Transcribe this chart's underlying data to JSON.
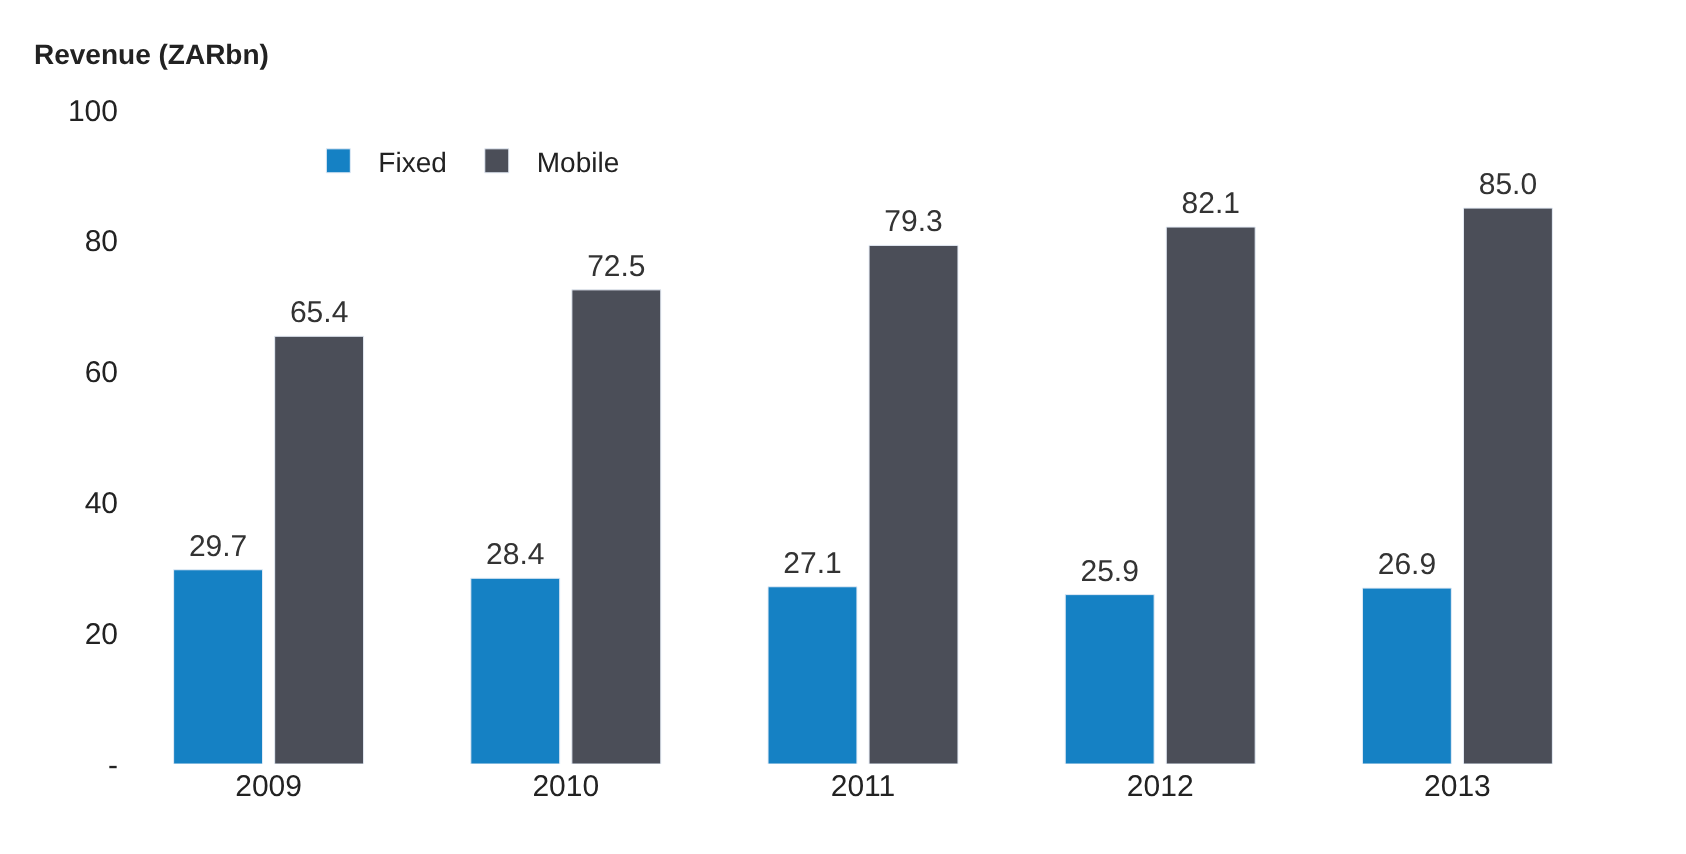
{
  "chart_data": {
    "type": "bar",
    "ylabel": "Revenue (ZARbn)",
    "categories": [
      "2009",
      "2010",
      "2011",
      "2012",
      "2013"
    ],
    "series": [
      {
        "name": "Fixed",
        "color": "#1581c4",
        "values": [
          29.7,
          28.4,
          27.1,
          25.9,
          26.9
        ]
      },
      {
        "name": "Mobile",
        "color": "#4b4e58",
        "values": [
          65.4,
          72.5,
          79.3,
          82.1,
          85.0
        ]
      }
    ],
    "value_labels": [
      [
        "29.7",
        "28.4",
        "27.1",
        "25.9",
        "26.9"
      ],
      [
        "65.4",
        "72.5",
        "79.3",
        "82.1",
        "85.0"
      ]
    ],
    "ylim": [
      0,
      100
    ],
    "yticks": [
      {
        "value": 0,
        "label": "-"
      },
      20,
      40,
      60,
      80,
      100
    ],
    "legend": "top left"
  }
}
